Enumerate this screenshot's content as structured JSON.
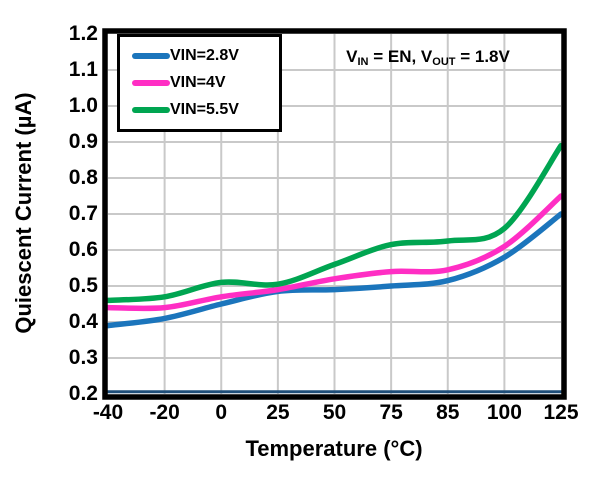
{
  "chart_data": {
    "type": "line",
    "title": "",
    "xlabel": "Temperature (°C)",
    "ylabel": "Quiescent Current (µA)",
    "categories": [
      "-40",
      "-20",
      "0",
      "25",
      "50",
      "75",
      "85",
      "100",
      "125"
    ],
    "x_axis_note": "categorical, evenly spaced ticks",
    "y_axis": {
      "min": 0.2,
      "max": 1.2,
      "tick_step": 0.1,
      "tick_format": "one-decimal"
    },
    "grid": true,
    "legend_position": "top-left-inside",
    "series": [
      {
        "name": "VIN=2.8V",
        "color": "#1B75BC",
        "values": [
          0.39,
          0.41,
          0.45,
          0.485,
          0.49,
          0.5,
          0.515,
          0.58,
          0.7
        ]
      },
      {
        "name": "VIN=4V",
        "color": "#FF2EC4",
        "values": [
          0.44,
          0.44,
          0.47,
          0.49,
          0.52,
          0.54,
          0.545,
          0.61,
          0.75
        ]
      },
      {
        "name": "VIN=5.5V",
        "color": "#00A551",
        "values": [
          0.46,
          0.47,
          0.51,
          0.505,
          0.56,
          0.615,
          0.625,
          0.66,
          0.89
        ]
      }
    ],
    "annotation": {
      "p1": "V",
      "s1": "IN",
      "p2": " = EN, V",
      "s2": "OUT",
      "p3": " = 1.8V"
    }
  },
  "colors": {
    "background": "#FFFFFF",
    "plot_border": "#000000",
    "axis_line_bottom": "#1F4E79",
    "gridline": "#C9C9C9",
    "text": "#000000",
    "legend_border": "#000000",
    "legend_background": "#FFFFFF"
  }
}
